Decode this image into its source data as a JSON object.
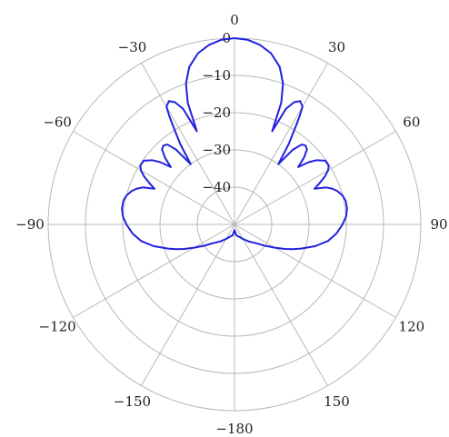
{
  "chart_data": {
    "type": "line",
    "coordinate_system": "polar",
    "angle_zero": "top",
    "angle_direction": "clockwise",
    "angle_ticks": [
      0,
      30,
      60,
      90,
      120,
      150,
      -180,
      -150,
      -120,
      -90,
      -60,
      -30
    ],
    "angle_tick_labels": [
      "0",
      "30",
      "60",
      "90",
      "120",
      "150",
      "−180",
      "−150",
      "−120",
      "−90",
      "−60",
      "−30"
    ],
    "radial_ticks": [
      0,
      -10,
      -20,
      -30,
      -40
    ],
    "radial_tick_labels": [
      "0",
      "−10",
      "−20",
      "−30",
      "−40"
    ],
    "rlim": [
      -50,
      0
    ],
    "grid": true,
    "series": [
      {
        "color": "#2020e0",
        "theta": [
          0,
          4,
          8,
          12,
          16,
          19,
          21,
          22,
          24,
          26,
          28,
          30,
          31,
          32,
          34,
          36,
          38,
          40,
          42,
          44,
          46,
          47,
          48,
          50,
          52,
          55,
          58,
          60,
          62,
          64,
          66,
          68,
          70,
          72,
          75,
          78,
          82,
          86,
          90,
          95,
          100,
          105,
          110,
          113,
          116,
          120,
          125,
          130,
          140,
          150,
          160,
          170,
          176,
          180,
          -176,
          -170,
          -160,
          -150,
          -140,
          -130,
          -125,
          -120,
          -116,
          -113,
          -110,
          -105,
          -100,
          -95,
          -90,
          -86,
          -82,
          -78,
          -75,
          -72,
          -70,
          -68,
          -66,
          -64,
          -62,
          -60,
          -58,
          -55,
          -52,
          -50,
          -48,
          -47,
          -46,
          -44,
          -42,
          -40,
          -38,
          -36,
          -34,
          -32,
          -31,
          -30,
          -28,
          -26,
          -24,
          -22,
          -21,
          -19,
          -16,
          -12,
          -8,
          -4,
          0
        ],
        "r": [
          0,
          -0.3,
          -1.3,
          -3.0,
          -6.0,
          -10.0,
          -15.0,
          -23.0,
          -16.0,
          -13.5,
          -12.5,
          -13.5,
          -16.0,
          -19.0,
          -24.0,
          -30.0,
          -24.5,
          -22.0,
          -21.5,
          -22.0,
          -24.0,
          -25.5,
          -27.0,
          -24.0,
          -22.0,
          -20.2,
          -20.2,
          -21.0,
          -22.5,
          -24.5,
          -26.5,
          -23.5,
          -22.0,
          -21.0,
          -20.0,
          -19.5,
          -19.5,
          -20.0,
          -21.0,
          -22.5,
          -24.5,
          -27.5,
          -31.0,
          -33.0,
          -35.0,
          -37.5,
          -40.0,
          -42.0,
          -44.0,
          -45.5,
          -46.5,
          -47.0,
          -48.0,
          -48.5,
          -48.0,
          -47.0,
          -46.5,
          -45.5,
          -44.0,
          -42.0,
          -40.0,
          -37.5,
          -35.0,
          -33.0,
          -31.0,
          -27.5,
          -24.5,
          -22.5,
          -21.0,
          -20.0,
          -19.5,
          -19.5,
          -20.0,
          -21.0,
          -22.0,
          -23.5,
          -26.5,
          -24.5,
          -22.5,
          -21.0,
          -20.2,
          -20.2,
          -22.0,
          -24.0,
          -27.0,
          -25.5,
          -24.0,
          -22.0,
          -21.5,
          -22.0,
          -24.5,
          -30.0,
          -24.0,
          -19.0,
          -16.0,
          -13.5,
          -12.5,
          -13.5,
          -16.0,
          -23.0,
          -15.0,
          -10.0,
          -6.0,
          -3.0,
          -1.3,
          -0.3,
          0
        ]
      }
    ]
  }
}
